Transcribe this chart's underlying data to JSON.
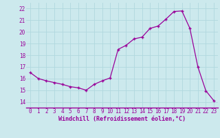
{
  "x": [
    0,
    1,
    2,
    3,
    4,
    5,
    6,
    7,
    8,
    9,
    10,
    11,
    12,
    13,
    14,
    15,
    16,
    17,
    18,
    19,
    20,
    21,
    22,
    23
  ],
  "y": [
    16.5,
    16.0,
    15.8,
    15.65,
    15.5,
    15.3,
    15.2,
    15.0,
    15.5,
    15.8,
    16.05,
    18.5,
    18.85,
    19.4,
    19.55,
    20.3,
    20.5,
    21.1,
    21.75,
    21.8,
    20.3,
    17.0,
    14.95,
    14.1
  ],
  "color": "#990099",
  "marker": "+",
  "markersize": 3.5,
  "markeredgewidth": 1.0,
  "linewidth": 0.9,
  "xlabel": "Windchill (Refroidissement éolien,°C)",
  "xlabel_fontsize": 6.0,
  "xtick_labels": [
    "0",
    "1",
    "2",
    "3",
    "4",
    "5",
    "6",
    "7",
    "8",
    "9",
    "10",
    "11",
    "12",
    "13",
    "14",
    "15",
    "16",
    "17",
    "18",
    "19",
    "20",
    "21",
    "22",
    "23"
  ],
  "xticks": [
    0,
    1,
    2,
    3,
    4,
    5,
    6,
    7,
    8,
    9,
    10,
    11,
    12,
    13,
    14,
    15,
    16,
    17,
    18,
    19,
    20,
    21,
    22,
    23
  ],
  "yticks": [
    14,
    15,
    16,
    17,
    18,
    19,
    20,
    21,
    22
  ],
  "ytick_labels": [
    "14",
    "15",
    "16",
    "17",
    "18",
    "19",
    "20",
    "21",
    "22"
  ],
  "ylim": [
    13.5,
    22.5
  ],
  "xlim": [
    -0.5,
    23.5
  ],
  "bg_color": "#cce9ed",
  "grid_color": "#b0d8de",
  "tick_color": "#990099",
  "tick_fontsize": 5.5,
  "spine_color": "#990099"
}
